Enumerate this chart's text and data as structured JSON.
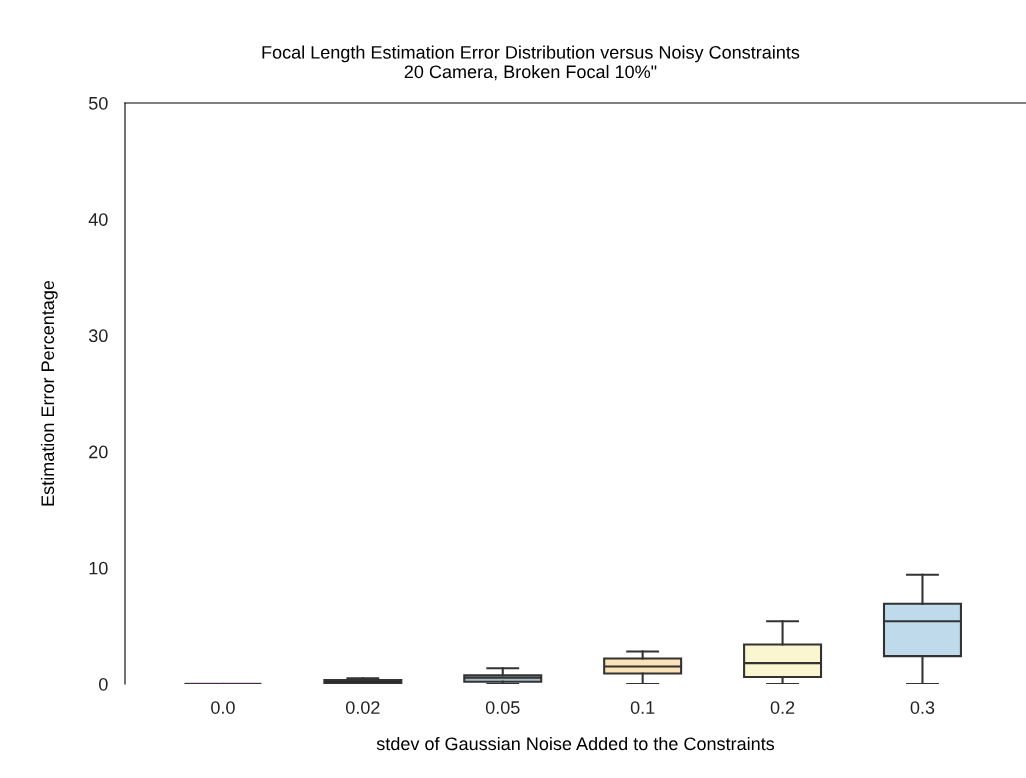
{
  "chart_data": {
    "type": "box",
    "title": "Focal Length Estimation Error Distribution versus Noisy Constraints\n20 Camera, Broken Focal 10%\"",
    "xlabel": "stdev of Gaussian Noise Added to the Constraints",
    "ylabel": "Estimation Error Percentage",
    "categories": [
      "0.0",
      "0.02",
      "0.05",
      "0.1",
      "0.2",
      "0.3"
    ],
    "colors": [
      "#f0d0f0",
      "#000000",
      "#a8bcc8",
      "#fae3b8",
      "#faf6cf",
      "#bfdaea"
    ],
    "boxes": [
      {
        "low": 0,
        "q1": 0,
        "median": 0,
        "q3": 0,
        "high": 0
      },
      {
        "low": 0,
        "q1": 0,
        "median": 0.15,
        "q3": 0.35,
        "high": 0.5
      },
      {
        "low": 0,
        "q1": 0.2,
        "median": 0.55,
        "q3": 0.75,
        "high": 1.35
      },
      {
        "low": 0,
        "q1": 0.9,
        "median": 1.5,
        "q3": 2.2,
        "high": 2.8
      },
      {
        "low": 0,
        "q1": 0.6,
        "median": 1.8,
        "q3": 3.4,
        "high": 5.4
      },
      {
        "low": 0,
        "q1": 2.4,
        "median": 5.4,
        "q3": 6.9,
        "high": 9.4
      }
    ],
    "ylim": [
      0,
      50
    ],
    "yticks": [
      0,
      10,
      20,
      30,
      40,
      50
    ],
    "grid": false,
    "legend": false
  }
}
